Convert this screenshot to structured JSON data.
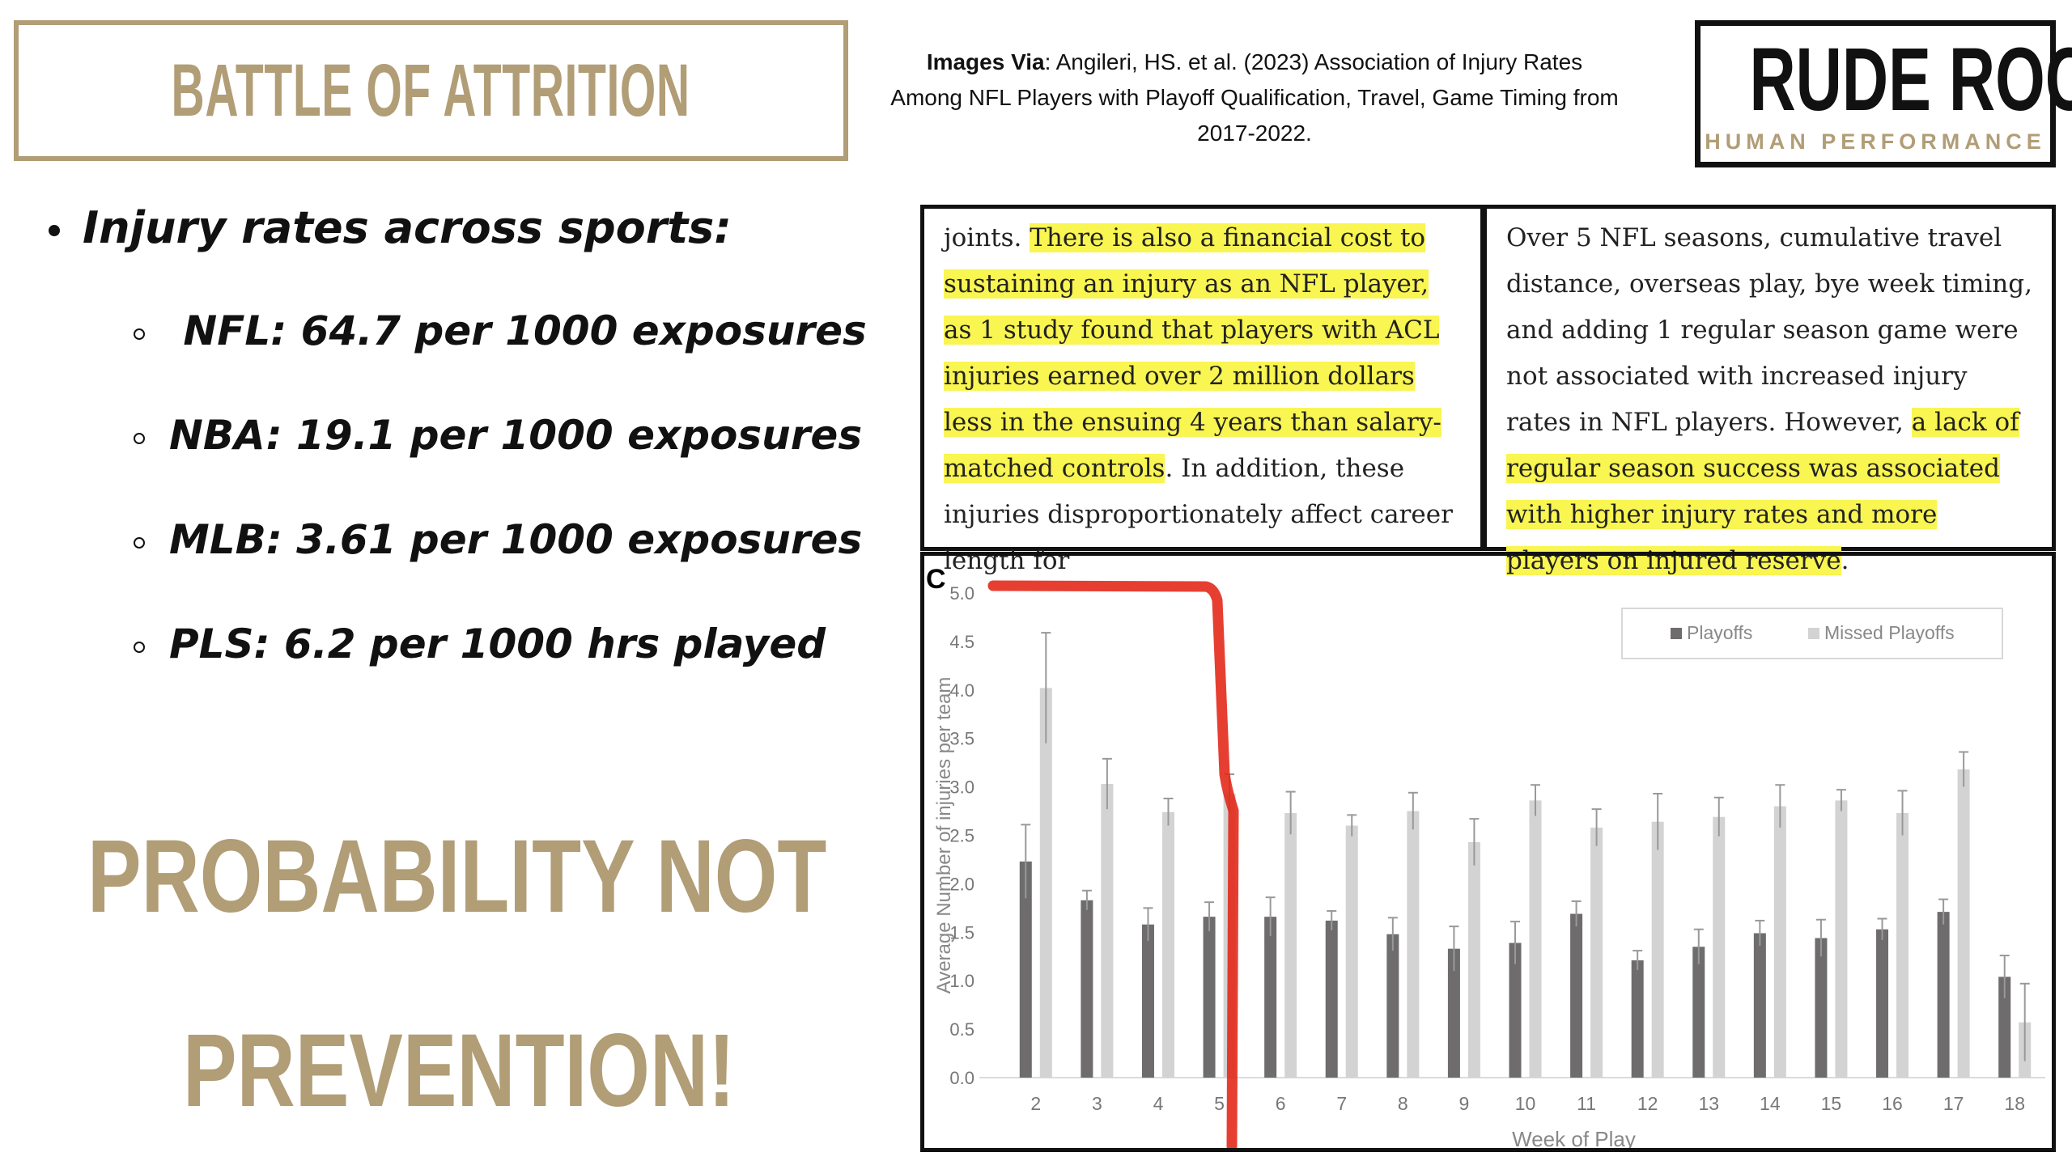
{
  "title": "BATTLE OF ATTRITION",
  "bullets": {
    "heading": "Injury rates across sports:",
    "items": [
      " NFL: 64.7 per 1000 exposures",
      "NBA: 19.1 per 1000 exposures",
      "MLB: 3.61 per 1000 exposures",
      "PLS: 6.2 per 1000 hrs played"
    ]
  },
  "tagline": {
    "line1": "PROBABILITY NOT",
    "line2": "PREVENTION!"
  },
  "citation": {
    "label": "Images Via",
    "text": ": Angileri, HS. et al. (2023) Association of Injury Rates Among NFL Players with Playoff Qualification, Travel, Game Timing from 2017-2022."
  },
  "logo": {
    "main": "RUDE ROCK",
    "sub": "HUMAN PERFORMANCE"
  },
  "excerpt_left": {
    "pre": "joints. ",
    "highlighted": "There is also a financial cost to sustaining an injury as an NFL player, as 1 study found that players with ACL injuries earned over 2 million dollars less in the ensuing 4 years than salary-matched controls",
    "post": ". In addition, these injuries disproportionately affect career length for"
  },
  "excerpt_right": {
    "pre": "Over 5 NFL seasons, cumulative travel distance, overseas play, bye week timing, and adding 1 regular season game were not associated with increased injury rates in NFL players. However, ",
    "highlighted": "a lack of regular season success was associated with higher injury rates and more players on injured reserve",
    "post": "."
  },
  "chart_data": {
    "type": "bar",
    "panel_label": "C",
    "xlabel": "Week of Play",
    "ylabel": "Average Number of injuries per team",
    "ylim": [
      0,
      5.0
    ],
    "yticks": [
      "0.0",
      "0.5",
      "1.0",
      "1.5",
      "2.0",
      "2.5",
      "3.0",
      "3.5",
      "4.0",
      "4.5",
      "5.0"
    ],
    "categories": [
      "2",
      "3",
      "4",
      "5",
      "6",
      "7",
      "8",
      "9",
      "10",
      "11",
      "12",
      "13",
      "14",
      "15",
      "16",
      "17",
      "18"
    ],
    "series": [
      {
        "name": "Playoffs",
        "color": "#6e6c6c",
        "values": [
          2.23,
          1.83,
          1.58,
          1.66,
          1.66,
          1.62,
          1.48,
          1.33,
          1.39,
          1.69,
          1.21,
          1.35,
          1.49,
          1.44,
          1.53,
          1.71,
          1.04
        ],
        "errors": [
          0.38,
          0.1,
          0.17,
          0.15,
          0.2,
          0.1,
          0.17,
          0.23,
          0.22,
          0.13,
          0.1,
          0.18,
          0.13,
          0.19,
          0.11,
          0.13,
          0.22
        ]
      },
      {
        "name": "Missed Playoffs",
        "color": "#d3d3d3",
        "values": [
          4.02,
          3.03,
          2.74,
          2.93,
          2.73,
          2.6,
          2.75,
          2.43,
          2.86,
          2.58,
          2.64,
          2.69,
          2.8,
          2.86,
          2.73,
          3.18,
          0.57
        ],
        "errors": [
          0.57,
          0.26,
          0.14,
          0.2,
          0.22,
          0.11,
          0.19,
          0.24,
          0.16,
          0.19,
          0.29,
          0.2,
          0.22,
          0.11,
          0.23,
          0.18,
          0.4
        ]
      }
    ],
    "legend": "top-right",
    "annotation_color": "#e32416"
  }
}
